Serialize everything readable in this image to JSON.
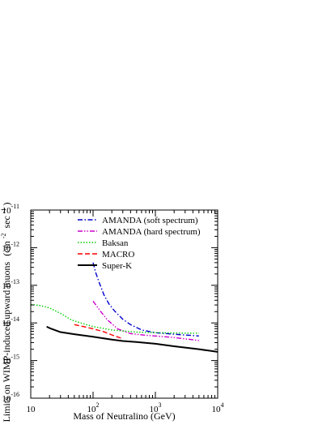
{
  "chart_data": {
    "type": "line",
    "title": "",
    "xlabel": "Mass of Neutralino (GeV)",
    "ylabel_parts": {
      "main": "Limits on WIMP-induced upward muons",
      "unit_open": "(cm",
      "unit_exp1": "-2",
      "unit_mid": "sec",
      "unit_exp2": "-1",
      "unit_close": ")"
    },
    "x_scale": "log",
    "y_scale": "log",
    "xlim": [
      10,
      10000
    ],
    "ylim": [
      1e-16,
      1e-11
    ],
    "x_ticks": [
      {
        "value": 10,
        "base": "10",
        "exp": ""
      },
      {
        "value": 100,
        "base": "10",
        "exp": "2"
      },
      {
        "value": 1000,
        "base": "10",
        "exp": "3"
      },
      {
        "value": 10000,
        "base": "10",
        "exp": "4"
      }
    ],
    "y_ticks": [
      {
        "value": 1e-16,
        "base": "10",
        "exp": "-16"
      },
      {
        "value": 1e-15,
        "base": "10",
        "exp": "-15"
      },
      {
        "value": 1e-14,
        "base": "10",
        "exp": "-14"
      },
      {
        "value": 1e-13,
        "base": "10",
        "exp": "-13"
      },
      {
        "value": 1e-12,
        "base": "10",
        "exp": "-12"
      },
      {
        "value": 1e-11,
        "base": "10",
        "exp": "-11"
      }
    ],
    "grid": false,
    "legend_position": "top-right",
    "series": [
      {
        "name": "AMANDA (soft spectrum)",
        "color": "#0000cc",
        "dash": "dash-dot",
        "x": [
          100,
          110,
          125,
          150,
          180,
          220,
          300,
          400,
          600,
          1000,
          2000,
          5000
        ],
        "y": [
          4e-13,
          2.2e-13,
          1.2e-13,
          5.5e-14,
          3.2e-14,
          2.1e-14,
          1.25e-14,
          9e-15,
          6.5e-15,
          5.5e-15,
          5e-15,
          4.5e-15
        ]
      },
      {
        "name": "AMANDA (hard spectrum)",
        "color": "#cc00cc",
        "dash": "dash-dot-dot",
        "x": [
          100,
          130,
          170,
          250,
          400,
          700,
          1000,
          2000,
          5000
        ],
        "y": [
          3.8e-14,
          2.1e-14,
          1.2e-14,
          6.9e-15,
          5.2e-15,
          4.7e-15,
          4.5e-15,
          4.1e-15,
          3.4e-15
        ]
      },
      {
        "name": "Baksan",
        "color": "#00cc00",
        "dash": "dotted",
        "x": [
          10,
          14,
          20,
          30,
          45,
          70,
          100,
          200,
          500,
          1000,
          2000,
          5000
        ],
        "y": [
          3.1e-14,
          2.9e-14,
          2.5e-14,
          1.8e-14,
          1.2e-14,
          9.5e-15,
          8e-15,
          6.5e-15,
          5.7e-15,
          5.5e-15,
          5.4e-15,
          5.3e-15
        ]
      },
      {
        "name": "MACRO",
        "color": "#ff0000",
        "dash": "dashed",
        "x": [
          50,
          70,
          100,
          150,
          200,
          300
        ],
        "y": [
          9e-15,
          8e-15,
          7e-15,
          5.8e-15,
          4.8e-15,
          3.8e-15
        ]
      },
      {
        "name": "Super-K",
        "color": "#000000",
        "dash": "solid",
        "x": [
          18,
          20,
          30,
          50,
          100,
          200,
          300,
          500,
          1000,
          2000,
          5000,
          10000
        ],
        "y": [
          8e-15,
          7.3e-15,
          5.7e-15,
          5e-15,
          4.3e-15,
          3.6e-15,
          3.3e-15,
          3.1e-15,
          2.8e-15,
          2.4e-15,
          2e-15,
          1.7e-15
        ]
      }
    ]
  }
}
